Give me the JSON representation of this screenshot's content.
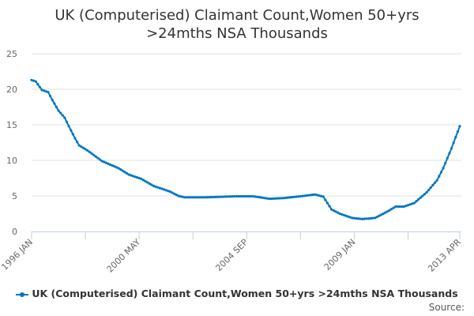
{
  "chart_data": {
    "type": "line",
    "title_line1": "UK (Computerised) Claimant Count,Women 50+yrs",
    "title_line2": ">24mths NSA Thousands",
    "xlabel": "",
    "ylabel": "",
    "ylim": [
      0,
      25
    ],
    "yticks": [
      "0",
      "5",
      "10",
      "15",
      "20",
      "25"
    ],
    "x_start": "1996 JAN",
    "x_end": "2013 APR",
    "x_month_count": 208,
    "xtick_labels": [
      {
        "month_index": 0,
        "label": "1996 JAN"
      },
      {
        "month_index": 52,
        "label": "2000 MAY"
      },
      {
        "month_index": 104,
        "label": "2004 SEP"
      },
      {
        "month_index": 156,
        "label": "2009 JAN"
      },
      {
        "month_index": 207,
        "label": "2013 APR"
      }
    ],
    "grid": true,
    "legend_position": "bottom",
    "series": [
      {
        "name": "UK (Computerised) Claimant Count,Women 50+yrs >24mths NSA Thousands",
        "color": "#0077c0",
        "points_month_value": [
          [
            0,
            21.3
          ],
          [
            2,
            21.1
          ],
          [
            5,
            19.9
          ],
          [
            8,
            19.6
          ],
          [
            10,
            18.5
          ],
          [
            13,
            17.0
          ],
          [
            16,
            16.0
          ],
          [
            18,
            14.8
          ],
          [
            21,
            13.1
          ],
          [
            23,
            12.1
          ],
          [
            27,
            11.4
          ],
          [
            34,
            9.9
          ],
          [
            42,
            8.9
          ],
          [
            47,
            8.0
          ],
          [
            53,
            7.4
          ],
          [
            59,
            6.4
          ],
          [
            67,
            5.6
          ],
          [
            71,
            5.0
          ],
          [
            74,
            4.8
          ],
          [
            84,
            4.8
          ],
          [
            99,
            4.95
          ],
          [
            107,
            4.95
          ],
          [
            115,
            4.6
          ],
          [
            122,
            4.7
          ],
          [
            130,
            4.95
          ],
          [
            137,
            5.2
          ],
          [
            141,
            4.9
          ],
          [
            143,
            4.0
          ],
          [
            145,
            3.1
          ],
          [
            149,
            2.5
          ],
          [
            155,
            1.9
          ],
          [
            160,
            1.75
          ],
          [
            166,
            1.9
          ],
          [
            172,
            2.8
          ],
          [
            176,
            3.5
          ],
          [
            180,
            3.5
          ],
          [
            185,
            4.0
          ],
          [
            191,
            5.5
          ],
          [
            196,
            7.2
          ],
          [
            199,
            8.9
          ],
          [
            203,
            11.7
          ],
          [
            207,
            14.8
          ]
        ]
      }
    ]
  },
  "legend_label": "UK (Computerised) Claimant Count,Women 50+yrs >24mths NSA Thousands",
  "source_label": "Source:"
}
